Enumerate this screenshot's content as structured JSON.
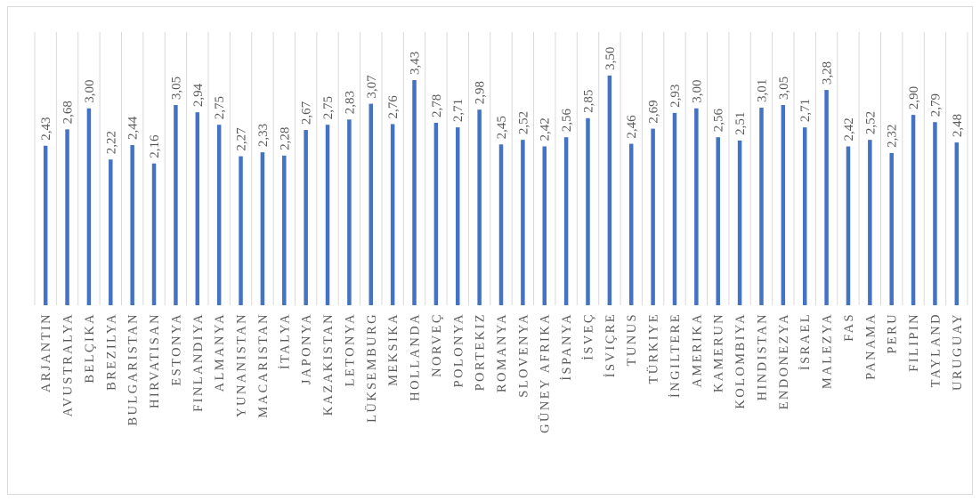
{
  "chart_data": {
    "type": "bar",
    "categories": [
      "ARJANTIN",
      "AVUSTRALYA",
      "BELÇIKA",
      "BREZILYA",
      "BULGARISTAN",
      "HIRVATISAN",
      "ESTONYA",
      "FINLANDIYA",
      "ALMANYA",
      "YUNANISTAN",
      "MACARISTAN",
      "İTALYA",
      "JAPONYA",
      "KAZAKISTAN",
      "LETONYA",
      "LÜKSEMBURG",
      "MEKSIKA",
      "HOLLANDA",
      "NORVEÇ",
      "POLONYA",
      "PORTEKIZ",
      "ROMANYA",
      "SLOVENYA",
      "GÜNEY AFRIKA",
      "İSPANYA",
      "İSVEÇ",
      "İSVIÇRE",
      "TUNUS",
      "TÜRKIYE",
      "İNGILTERE",
      "AMERIKA",
      "KAMERUN",
      "KOLOMBIYA",
      "HINDISTAN",
      "ENDONEZYA",
      "İSRAEL",
      "MALEZYA",
      "FAS",
      "PANAMA",
      "PERU",
      "FILIPIN",
      "TAYLAND",
      "URUGUAY"
    ],
    "values": [
      2.43,
      2.68,
      3.0,
      2.22,
      2.44,
      2.16,
      3.05,
      2.94,
      2.75,
      2.27,
      2.33,
      2.28,
      2.67,
      2.75,
      2.83,
      3.07,
      2.76,
      3.43,
      2.78,
      2.71,
      2.98,
      2.45,
      2.52,
      2.42,
      2.56,
      2.85,
      3.5,
      2.46,
      2.69,
      2.93,
      3.0,
      2.56,
      2.51,
      3.01,
      3.05,
      2.71,
      3.28,
      2.42,
      2.52,
      2.32,
      2.9,
      2.79,
      2.48
    ],
    "value_labels": [
      "2,43",
      "2,68",
      "3,00",
      "2,22",
      "2,44",
      "2,16",
      "3,05",
      "2,94",
      "2,75",
      "2,27",
      "2,33",
      "2,28",
      "2,67",
      "2,75",
      "2,83",
      "3,07",
      "2,76",
      "3,43",
      "2,78",
      "2,71",
      "2,98",
      "2,45",
      "2,52",
      "2,42",
      "2,56",
      "2,85",
      "3,50",
      "2,46",
      "2,69",
      "2,93",
      "3,00",
      "2,56",
      "2,51",
      "3,01",
      "3,05",
      "2,71",
      "3,28",
      "2,42",
      "2,52",
      "2,32",
      "2,90",
      "2,79",
      "2,48"
    ],
    "ylim": [
      0,
      4
    ],
    "grid": "vertical category separators",
    "legend": "none",
    "bar_color": "#4472c4",
    "title": "",
    "xlabel": "",
    "ylabel": ""
  }
}
